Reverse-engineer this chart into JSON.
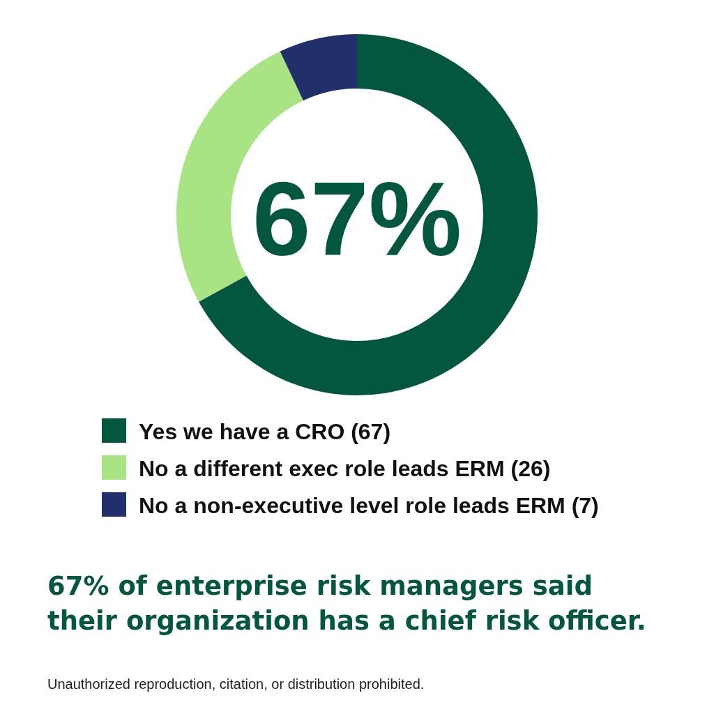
{
  "chart_data": {
    "type": "donut",
    "title": "67% of enterprise risk managers said their organization has a chief risk officer.",
    "categories": [
      "Yes we have a CRO (67)",
      "No a different exec role leads ERM (26)",
      "No a non-executive level role leads ERM (7)"
    ],
    "values": [
      67,
      26,
      7
    ],
    "colors": [
      "#03573f",
      "#a8e384",
      "#21306b"
    ],
    "legend": "bottom",
    "annotations": [
      "67%",
      "Unauthorized reproduction, citation, or distribution prohibited."
    ]
  }
}
